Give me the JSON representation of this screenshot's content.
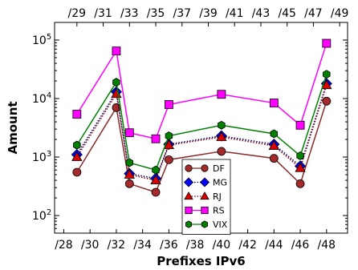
{
  "chart_data": {
    "type": "line",
    "xlabel": "Prefixes IPv6",
    "ylabel": "Amount",
    "x_scale": "linear",
    "y_scale": "log",
    "xlim": [
      27.3,
      49.6
    ],
    "ylim": [
      50,
      200000
    ],
    "bottom_ticks": [
      28,
      30,
      32,
      34,
      36,
      38,
      40,
      42,
      44,
      46,
      48
    ],
    "bottom_tick_labels": [
      "/28",
      "/30",
      "/32",
      "/34",
      "/36",
      "/38",
      "/40",
      "/42",
      "/44",
      "/46",
      "/48"
    ],
    "top_ticks": [
      29,
      31,
      33,
      35,
      37,
      39,
      41,
      43,
      45,
      47,
      49
    ],
    "top_tick_labels": [
      "/29",
      "/31",
      "/33",
      "/35",
      "/37",
      "/39",
      "/41",
      "/43",
      "/45",
      "/47",
      "/49"
    ],
    "y_ticks": [
      100,
      1000,
      10000,
      100000
    ],
    "y_tick_labels": [
      {
        "base": "10",
        "exp": "2"
      },
      {
        "base": "10",
        "exp": "3"
      },
      {
        "base": "10",
        "exp": "4"
      },
      {
        "base": "10",
        "exp": "5"
      }
    ],
    "x": [
      29,
      32,
      33,
      35,
      36,
      40,
      44,
      46,
      48
    ],
    "grid": false,
    "legend_position": "bottom-center",
    "series": [
      {
        "name": "DF",
        "color": "#a52a2a",
        "line_color": "#8b2a2a",
        "marker": "circle",
        "dash": "solid",
        "values": [
          550,
          7000,
          350,
          250,
          900,
          1250,
          950,
          350,
          9000
        ]
      },
      {
        "name": "MG",
        "color": "#0000ff",
        "line_color": "#00007a",
        "marker": "diamond",
        "dash": "dotted",
        "values": [
          1100,
          13000,
          520,
          430,
          1650,
          2300,
          1650,
          700,
          18000
        ]
      },
      {
        "name": "RJ",
        "color": "#dd0000",
        "line_color": "#880000",
        "marker": "triangle",
        "dash": "dotted",
        "values": [
          1000,
          12000,
          500,
          400,
          1600,
          2200,
          1550,
          650,
          17000
        ]
      },
      {
        "name": "RS",
        "color": "#ff00ff",
        "line_color": "#ff00ff",
        "marker": "square",
        "dash": "solid",
        "values": [
          5400,
          65000,
          2600,
          2050,
          7900,
          11800,
          8400,
          3500,
          88000
        ]
      },
      {
        "name": "VIX",
        "color": "#008000",
        "line_color": "#008000",
        "marker": "hexagon",
        "dash": "solid",
        "values": [
          1600,
          19000,
          800,
          600,
          2300,
          3500,
          2500,
          1050,
          26000
        ]
      }
    ]
  }
}
